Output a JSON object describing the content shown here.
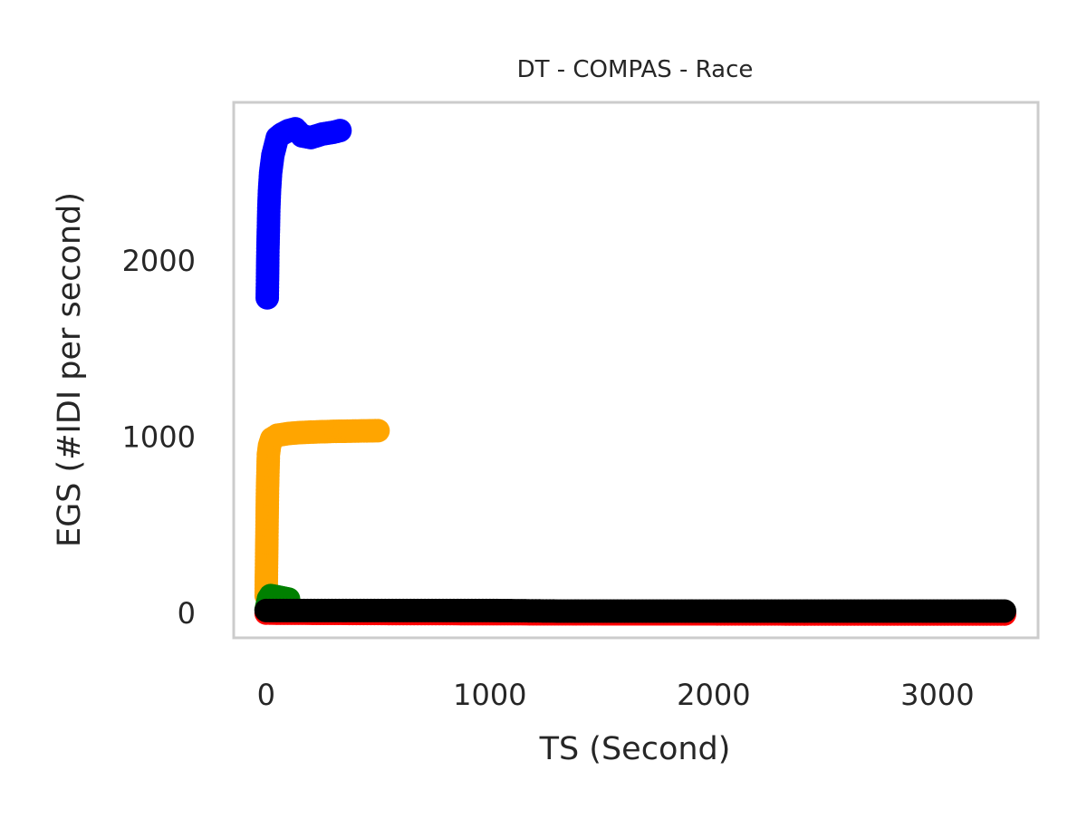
{
  "chart_data": {
    "type": "line",
    "title": "DT - COMPAS - Race",
    "xlabel": "TS (Second)",
    "ylabel": "EGS (#IDI  per second)",
    "xlim": [
      -145,
      3450
    ],
    "ylim": [
      -140,
      2900
    ],
    "xticks": [
      0,
      1000,
      2000,
      3000
    ],
    "yticks": [
      0,
      1000,
      2000
    ],
    "xtick_labels": [
      "0",
      "1000",
      "2000",
      "3000"
    ],
    "ytick_labels": [
      "0",
      "1000",
      "2000"
    ],
    "grid": false,
    "series": [
      {
        "color": "#ff0000",
        "points": [
          [
            0,
            0
          ],
          [
            500,
            -2
          ],
          [
            1000,
            -3
          ],
          [
            1500,
            -4
          ],
          [
            2000,
            -4
          ],
          [
            2500,
            -5
          ],
          [
            3000,
            -5
          ],
          [
            3300,
            -5
          ]
        ]
      },
      {
        "color": "#ffa500",
        "points": [
          [
            0,
            100
          ],
          [
            2,
            300
          ],
          [
            4,
            500
          ],
          [
            6,
            700
          ],
          [
            8,
            800
          ],
          [
            10,
            900
          ],
          [
            15,
            950
          ],
          [
            25,
            990
          ],
          [
            50,
            1010
          ],
          [
            100,
            1020
          ],
          [
            150,
            1025
          ],
          [
            200,
            1028
          ],
          [
            250,
            1030
          ],
          [
            300,
            1032
          ],
          [
            350,
            1033
          ],
          [
            400,
            1034
          ],
          [
            450,
            1035
          ],
          [
            500,
            1036
          ]
        ]
      },
      {
        "color": "#0000ff",
        "points": [
          [
            5,
            1790
          ],
          [
            8,
            2070
          ],
          [
            10,
            2180
          ],
          [
            12,
            2300
          ],
          [
            15,
            2400
          ],
          [
            20,
            2500
          ],
          [
            30,
            2600
          ],
          [
            40,
            2650
          ],
          [
            50,
            2700
          ],
          [
            70,
            2720
          ],
          [
            100,
            2740
          ],
          [
            130,
            2750
          ],
          [
            160,
            2710
          ],
          [
            200,
            2700
          ],
          [
            250,
            2720
          ],
          [
            300,
            2730
          ],
          [
            330,
            2740
          ]
        ]
      },
      {
        "color": "#008000",
        "points": [
          [
            0,
            20
          ],
          [
            10,
            80
          ],
          [
            20,
            100
          ],
          [
            40,
            95
          ],
          [
            60,
            90
          ],
          [
            80,
            85
          ],
          [
            100,
            80
          ]
        ]
      },
      {
        "color": "#000000",
        "points": [
          [
            0,
            15
          ],
          [
            200,
            15
          ],
          [
            500,
            15
          ],
          [
            1000,
            15
          ],
          [
            1300,
            12
          ],
          [
            2000,
            12
          ],
          [
            2500,
            12
          ],
          [
            3000,
            12
          ],
          [
            3300,
            12
          ]
        ]
      }
    ]
  }
}
